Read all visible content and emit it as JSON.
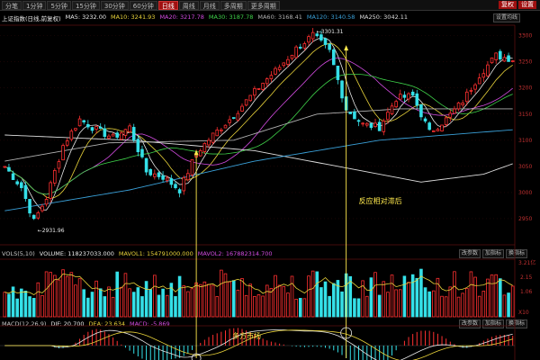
{
  "toolbar": {
    "tabs": [
      "分笔",
      "1分钟",
      "5分钟",
      "15分钟",
      "30分钟",
      "60分钟",
      "日线",
      "周线",
      "月线",
      "多周期",
      "更多周期"
    ],
    "active_index": 6,
    "right_buttons": [
      "复权",
      "设置"
    ]
  },
  "main_legend": {
    "title": "上证指数(日线,前复权)",
    "items": [
      {
        "label": "MA5: 3232.00",
        "color": "#e8e8e8"
      },
      {
        "label": "MA10: 3241.93",
        "color": "#e8d23a"
      },
      {
        "label": "MA20: 3217.78",
        "color": "#d24be0"
      },
      {
        "label": "MA30: 3187.78",
        "color": "#3fd34a"
      },
      {
        "label": "MA60: 3168.41",
        "color": "#b0b0b0"
      },
      {
        "label": "MA120: 3140.58",
        "color": "#3aa0d8"
      },
      {
        "label": "MA250: 3042.11",
        "color": "#dddddd"
      }
    ],
    "right_label": "设置均线"
  },
  "vol_legend": {
    "items": [
      {
        "label": "VOLS(5,10)",
        "color": "#c8c8c8"
      },
      {
        "label": "VOLUME: 118237033.000",
        "color": "#e8e8e8"
      },
      {
        "label": "MAVOL1: 154791000.000",
        "color": "#e8d23a"
      },
      {
        "label": "MAVOL2: 167882314.700",
        "color": "#d24be0"
      }
    ],
    "buttons": [
      "改参数",
      "加指标",
      "换指标"
    ]
  },
  "macd_legend": {
    "items": [
      {
        "label": "MACD(12,26,9)",
        "color": "#c8c8c8"
      },
      {
        "label": "DIF: 20.700",
        "color": "#e8e8e8"
      },
      {
        "label": "DEA: 23.634",
        "color": "#e8d23a"
      },
      {
        "label": "MACD: -5.869",
        "color": "#d24be0"
      }
    ],
    "buttons": [
      "改参数",
      "加指标",
      "换指标"
    ]
  },
  "annotations": {
    "high": "3301.31",
    "low": "2931.96",
    "reaction_lag": "反应相对滞后",
    "bull_market": "多方市场"
  },
  "chart_data": {
    "type": "candlestick",
    "symbol": "上证指数",
    "ylim": [
      2900,
      3320
    ],
    "price_ticks": [
      2950,
      3000,
      3050,
      3100,
      3150,
      3200,
      3250,
      3300
    ],
    "volume_ticks": [
      "2.15",
      "1.06"
    ],
    "volume_top_label": "3.21亿",
    "volume_unit": "X10",
    "anchors": [
      [
        0,
        3050
      ],
      [
        4,
        3010
      ],
      [
        7,
        2945
      ],
      [
        10,
        2990
      ],
      [
        14,
        3090
      ],
      [
        18,
        3140
      ],
      [
        22,
        3120
      ],
      [
        26,
        3105
      ],
      [
        30,
        3125
      ],
      [
        34,
        3040
      ],
      [
        38,
        3030
      ],
      [
        42,
        3005
      ],
      [
        46,
        3075
      ],
      [
        50,
        3110
      ],
      [
        54,
        3140
      ],
      [
        58,
        3175
      ],
      [
        62,
        3210
      ],
      [
        66,
        3240
      ],
      [
        70,
        3275
      ],
      [
        74,
        3301
      ],
      [
        78,
        3270
      ],
      [
        82,
        3160
      ],
      [
        86,
        3130
      ],
      [
        90,
        3125
      ],
      [
        94,
        3180
      ],
      [
        98,
        3185
      ],
      [
        102,
        3115
      ],
      [
        106,
        3140
      ],
      [
        110,
        3175
      ],
      [
        114,
        3225
      ],
      [
        118,
        3262
      ],
      [
        122,
        3255
      ]
    ],
    "ma_lines": [
      {
        "name": "MA250",
        "color": "#dddddd",
        "values": [
          [
            0,
            3110
          ],
          [
            30,
            3100
          ],
          [
            60,
            3080
          ],
          [
            80,
            3050
          ],
          [
            100,
            3020
          ],
          [
            115,
            3035
          ],
          [
            122,
            3055
          ]
        ]
      },
      {
        "name": "MA120",
        "color": "#3aa0d8",
        "values": [
          [
            0,
            2965
          ],
          [
            30,
            3005
          ],
          [
            60,
            3060
          ],
          [
            90,
            3100
          ],
          [
            122,
            3120
          ]
        ]
      },
      {
        "name": "MA60",
        "color": "#b0b0b0",
        "values": [
          [
            0,
            3060
          ],
          [
            25,
            3095
          ],
          [
            55,
            3100
          ],
          [
            75,
            3150
          ],
          [
            95,
            3160
          ],
          [
            122,
            3160
          ]
        ]
      }
    ]
  }
}
